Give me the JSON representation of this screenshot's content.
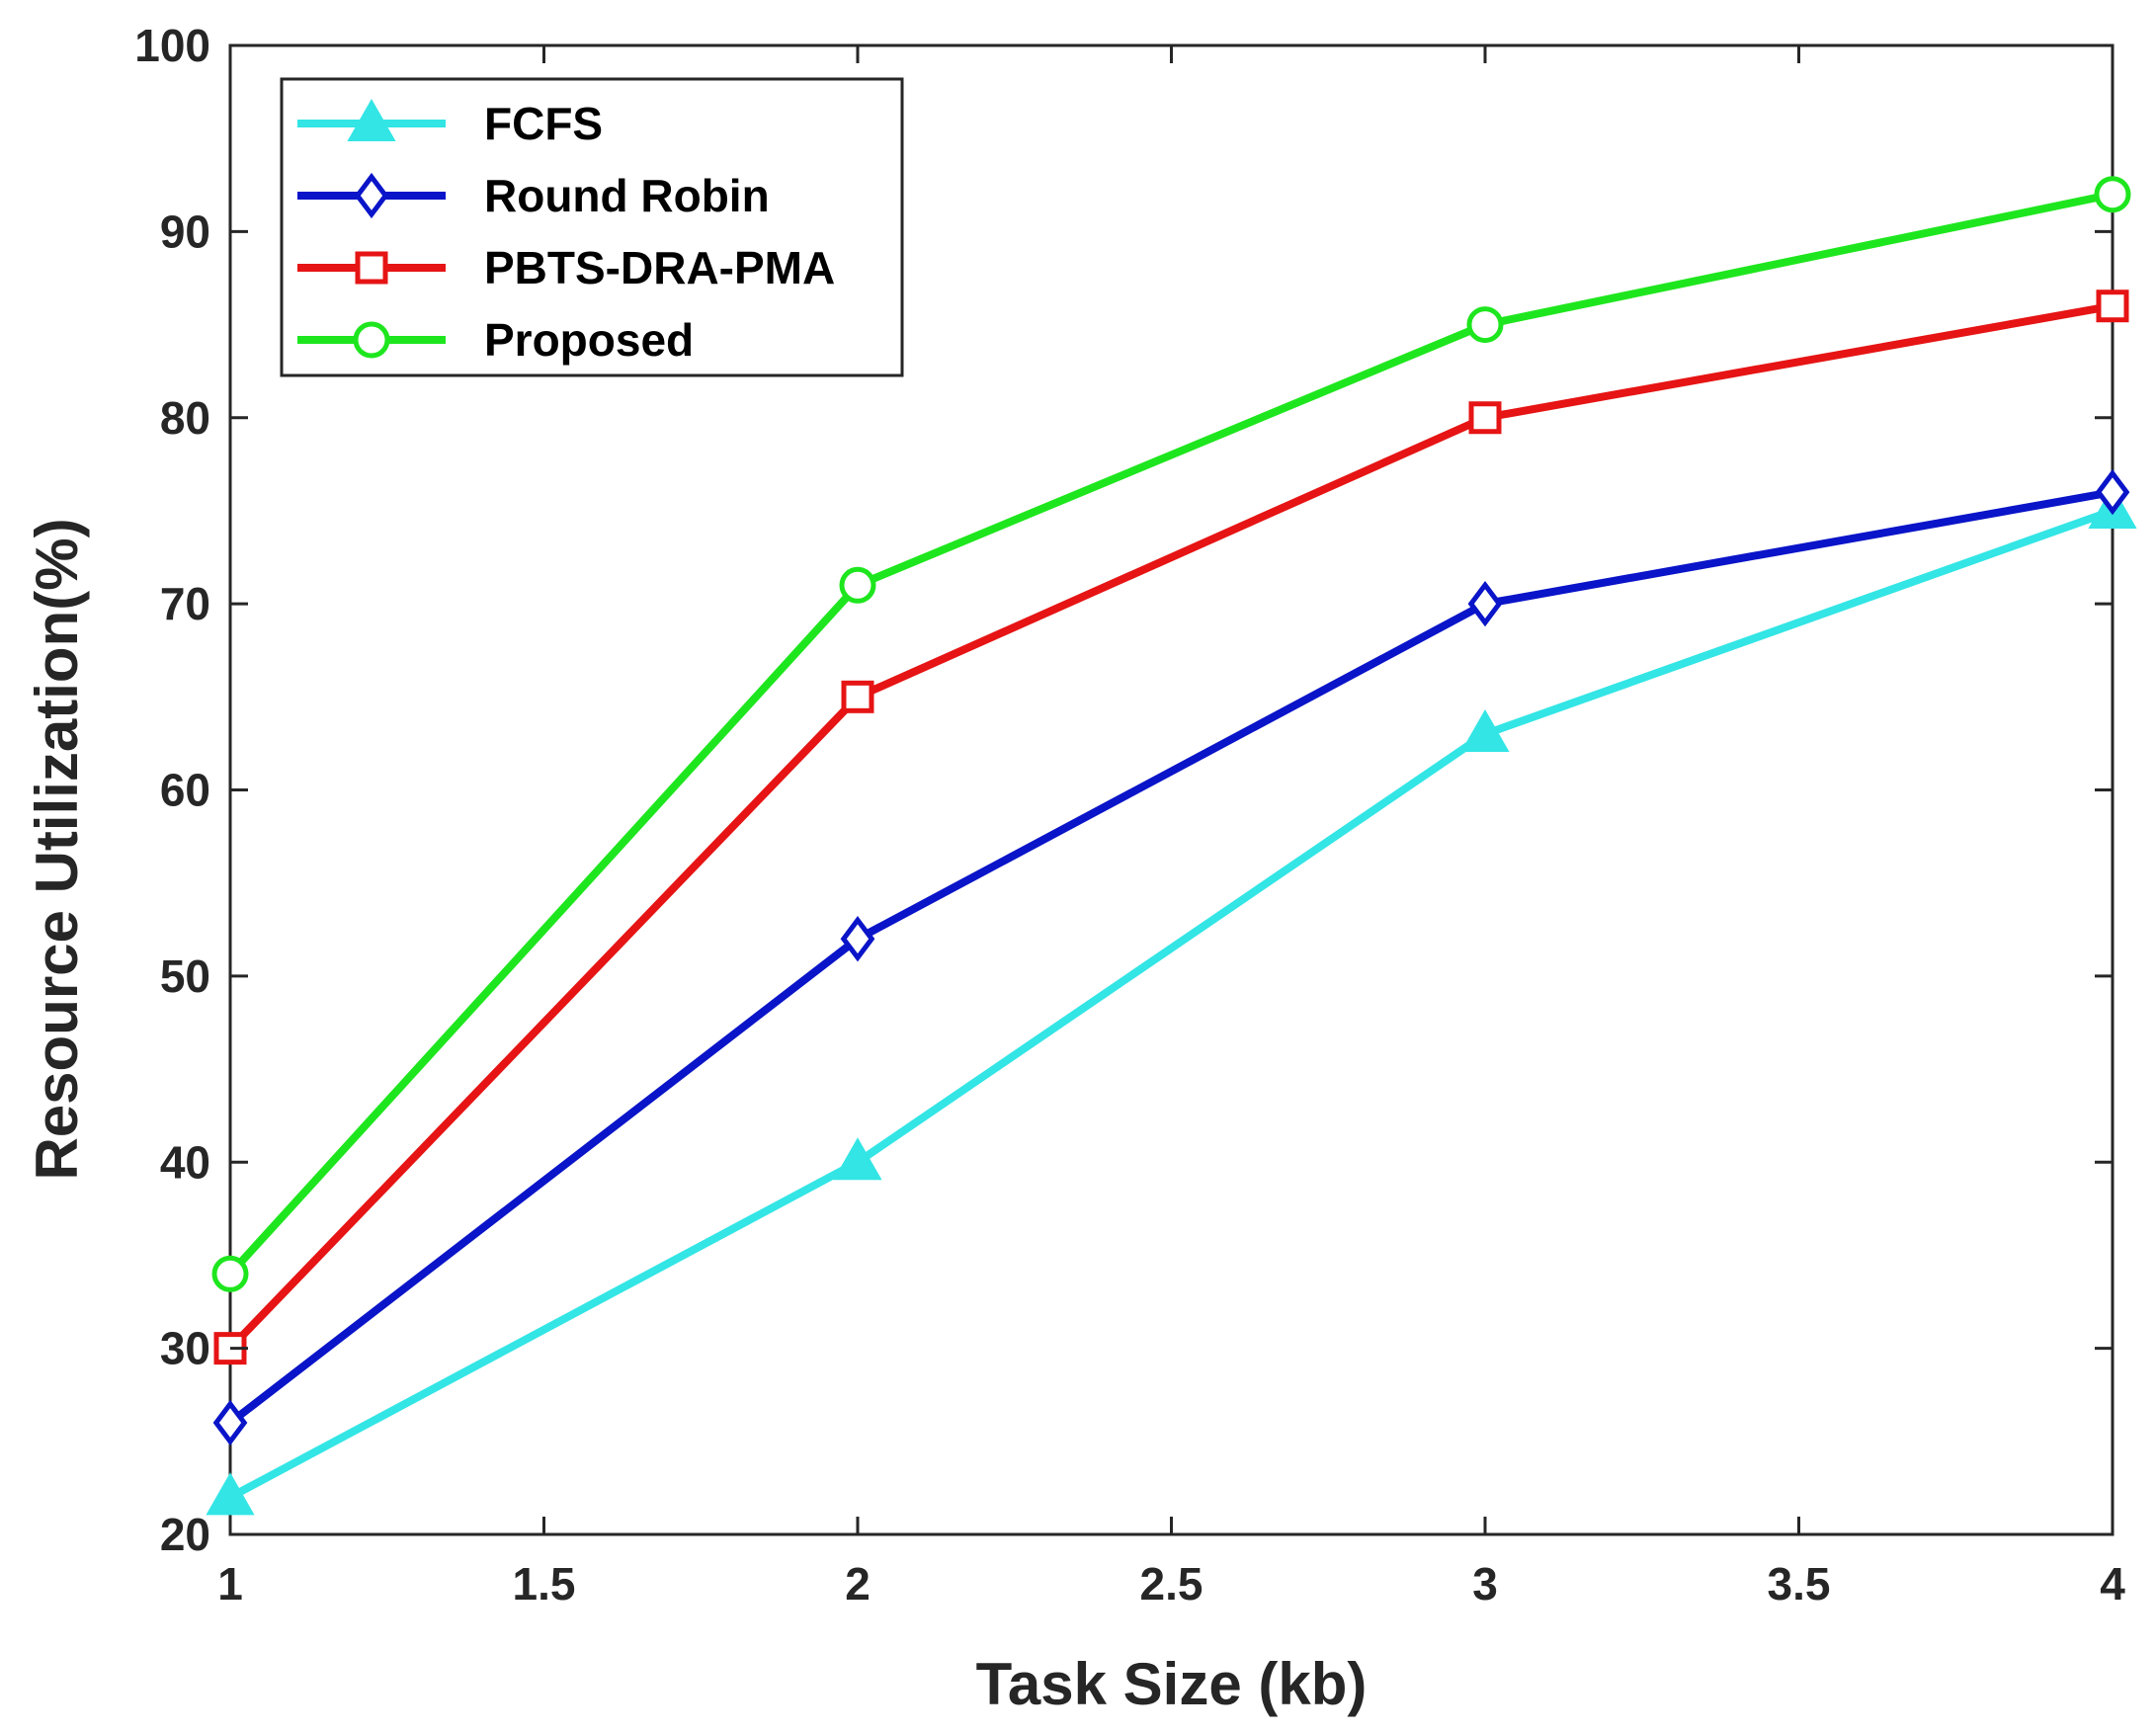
{
  "chart_data": {
    "type": "line",
    "title": "",
    "xlabel": "Task Size (kb)",
    "ylabel": "Resource Utilization(%)",
    "xlim": [
      1,
      4
    ],
    "ylim": [
      20,
      100
    ],
    "xticks": [
      1,
      1.5,
      2,
      2.5,
      3,
      3.5,
      4
    ],
    "xtick_labels": [
      "1",
      "1.5",
      "2",
      "2.5",
      "3",
      "3.5",
      "4"
    ],
    "yticks": [
      20,
      30,
      40,
      50,
      60,
      70,
      80,
      90,
      100
    ],
    "ytick_labels": [
      "20",
      "30",
      "40",
      "50",
      "60",
      "70",
      "80",
      "90",
      "100"
    ],
    "grid": false,
    "legend_position": "top-left",
    "x": [
      1,
      2,
      3,
      4
    ],
    "series": [
      {
        "name": "FCFS",
        "values": [
          22,
          40,
          63,
          75
        ],
        "color": "#33e5e5",
        "marker": "triangle"
      },
      {
        "name": "Round Robin",
        "values": [
          26,
          52,
          70,
          76
        ],
        "color": "#0a14c8",
        "marker": "diamond"
      },
      {
        "name": "PBTS-DRA-PMA",
        "values": [
          30,
          65,
          80,
          86
        ],
        "color": "#e61414",
        "marker": "square"
      },
      {
        "name": "Proposed",
        "values": [
          34,
          71,
          85,
          92
        ],
        "color": "#1ee61e",
        "marker": "circle"
      }
    ]
  }
}
